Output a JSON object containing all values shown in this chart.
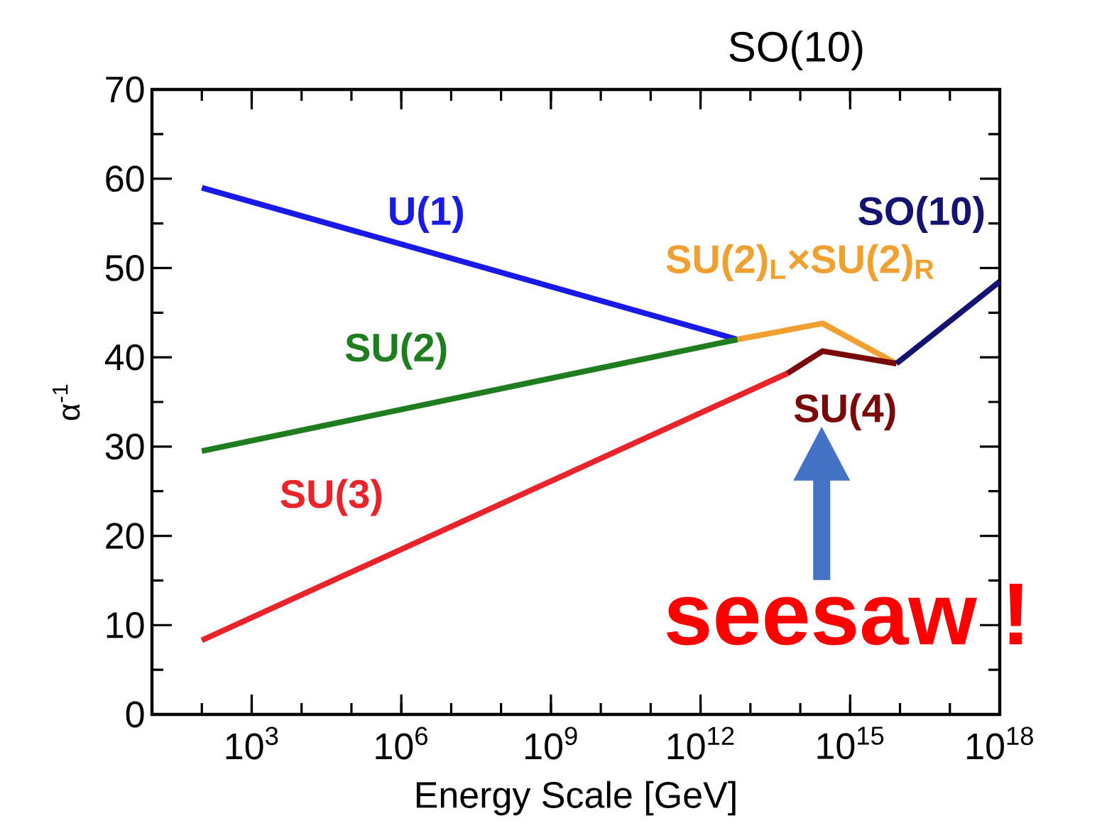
{
  "chart_data": {
    "type": "line",
    "title": "SO(10)",
    "xlabel": "Energy Scale [GeV]",
    "ylabel": "α$^{-1}$",
    "log": "x",
    "xlim": [
      10,
      1e+18
    ],
    "ylim": [
      0,
      70
    ],
    "xticks": [
      {
        "value": 1000,
        "label": "10$^{3}$"
      },
      {
        "value": 1000000.0,
        "label": "10$^{6}$"
      },
      {
        "value": 1000000000.0,
        "label": "10$^{9}$"
      },
      {
        "value": 1000000000000.0,
        "label": "10$^{12}$"
      },
      {
        "value": 1000000000000000.0,
        "label": "10$^{15}$"
      },
      {
        "value": 1e+18,
        "label": "10$^{18}$"
      }
    ],
    "yticks": [
      0,
      10,
      20,
      30,
      40,
      50,
      60,
      70
    ],
    "grid": false,
    "legend": false,
    "marker": "none",
    "line_style": "solid",
    "series": [
      {
        "name": "U(1)",
        "color": "#1a1ae6",
        "x": [
          100,
          5500000000000.0
        ],
        "values": [
          59,
          42
        ]
      },
      {
        "name": "SU(2)",
        "color": "#1e7d1e",
        "x": [
          100,
          5500000000000.0
        ],
        "values": [
          29.5,
          42
        ]
      },
      {
        "name": "SU(3)",
        "color": "#e8242a",
        "x": [
          100,
          55000000000000.0
        ],
        "values": [
          8.3,
          38.2
        ]
      },
      {
        "name": "SU(2)$_{L}$×SU(2)$_{R}$",
        "color": "#f0a030",
        "x": [
          5500000000000.0,
          280000000000000.0,
          8500000000000000.0
        ],
        "values": [
          42,
          43.8,
          39.3
        ]
      },
      {
        "name": "SU(4)",
        "color": "#7a0a0a",
        "x": [
          55000000000000.0,
          280000000000000.0,
          8500000000000000.0
        ],
        "values": [
          38.2,
          40.7,
          39.3
        ]
      },
      {
        "name": "SO(10)",
        "color": "#141470",
        "x": [
          8500000000000000.0,
          1e+18
        ],
        "values": [
          39.3,
          48.5
        ]
      }
    ],
    "annotations": [
      "seesaw !"
    ]
  }
}
